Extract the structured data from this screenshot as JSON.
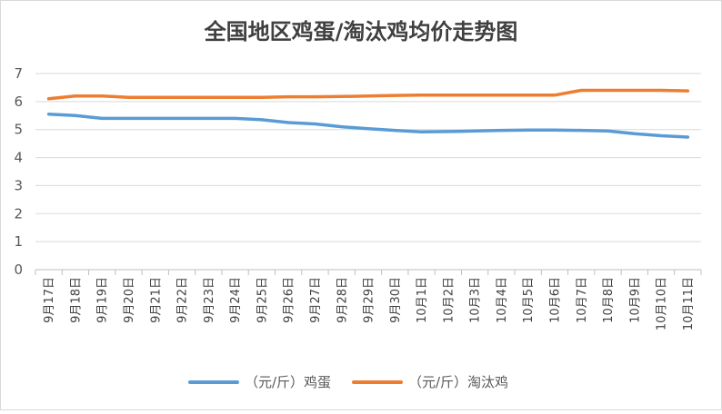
{
  "chart_data": {
    "type": "line",
    "title": "全国地区鸡蛋/淘汰鸡均价走势图",
    "categories": [
      "9月17日",
      "9月18日",
      "9月19日",
      "9月20日",
      "9月21日",
      "9月22日",
      "9月23日",
      "9月24日",
      "9月25日",
      "9月26日",
      "9月27日",
      "9月28日",
      "9月29日",
      "9月30日",
      "10月1日",
      "10月2日",
      "10月3日",
      "10月4日",
      "10月5日",
      "10月6日",
      "10月7日",
      "10月8日",
      "10月9日",
      "10月10日",
      "10月11日"
    ],
    "series": [
      {
        "name": "（元/斤）鸡蛋",
        "color": "#5b9bd5",
        "values": [
          5.55,
          5.5,
          5.4,
          5.4,
          5.4,
          5.4,
          5.4,
          5.4,
          5.35,
          5.25,
          5.2,
          5.1,
          5.03,
          4.97,
          4.92,
          4.93,
          4.95,
          4.97,
          4.98,
          4.98,
          4.97,
          4.95,
          4.85,
          4.78,
          4.73
        ]
      },
      {
        "name": "（元/斤）淘汰鸡",
        "color": "#ed7d31",
        "values": [
          6.1,
          6.2,
          6.2,
          6.15,
          6.15,
          6.15,
          6.15,
          6.15,
          6.15,
          6.17,
          6.17,
          6.18,
          6.2,
          6.22,
          6.23,
          6.23,
          6.23,
          6.23,
          6.23,
          6.23,
          6.4,
          6.4,
          6.4,
          6.4,
          6.38
        ]
      }
    ],
    "ylim": [
      0,
      7
    ],
    "yticks": [
      0,
      1,
      2,
      3,
      4,
      5,
      6,
      7
    ],
    "grid": true,
    "legend": "bottom"
  }
}
